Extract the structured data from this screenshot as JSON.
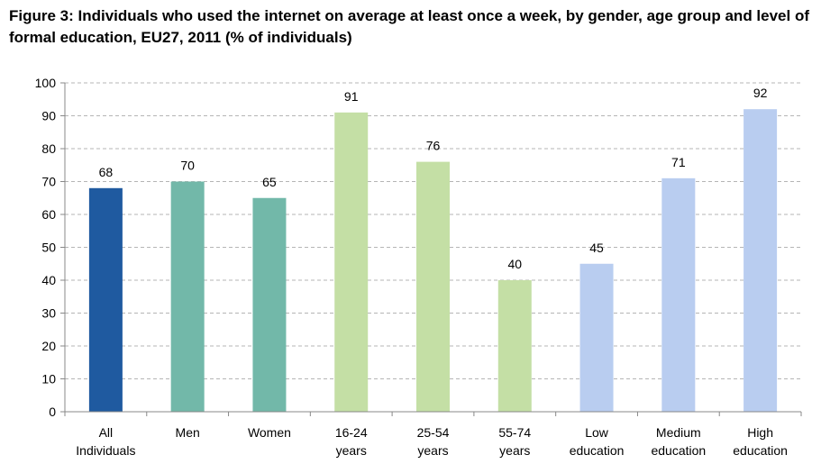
{
  "chart_data": {
    "type": "bar",
    "title": "Figure 3: Individuals who used the internet on average at least once a week, by gender, age group and level of formal education, EU27, 2011 (% of individuals)",
    "categories": [
      [
        "All",
        "Individuals"
      ],
      [
        "Men"
      ],
      [
        "Women"
      ],
      [
        "16-24",
        "years"
      ],
      [
        "25-54",
        "years"
      ],
      [
        "55-74",
        "years"
      ],
      [
        "Low",
        "education"
      ],
      [
        "Medium",
        "education"
      ],
      [
        "High",
        "education"
      ]
    ],
    "values": [
      68,
      70,
      65,
      91,
      76,
      40,
      45,
      71,
      92
    ],
    "colors": [
      "#1f5aa0",
      "#72b8a9",
      "#72b8a9",
      "#c4dfa5",
      "#c4dfa5",
      "#c4dfa5",
      "#b9cdf0",
      "#b9cdf0",
      "#b9cdf0"
    ],
    "ylim": [
      0,
      100
    ],
    "yticks": [
      0,
      10,
      20,
      30,
      40,
      50,
      60,
      70,
      80,
      90,
      100
    ],
    "grid": true,
    "grid_style": "dashed",
    "xlabel": "",
    "ylabel": ""
  }
}
